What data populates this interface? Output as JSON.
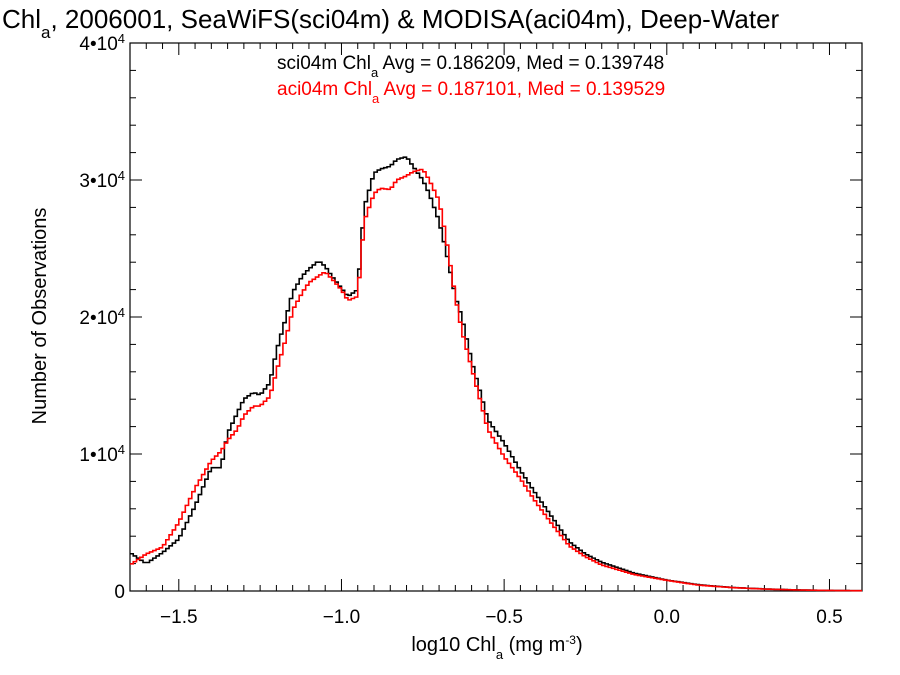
{
  "chart_data": {
    "type": "line",
    "title_parts": [
      "Chl",
      "a",
      ", 2006001, SeaWiFS(sci04m) & MODISA(aci04m), Deep-Water"
    ],
    "xlabel_parts": [
      "log10 Chl",
      "a",
      " (mg m",
      "-3",
      ")"
    ],
    "ylabel": "Number of Observations",
    "xlim": [
      -1.65,
      0.6
    ],
    "ylim": [
      0,
      40000
    ],
    "x_ticks": [
      {
        "value": -1.5,
        "label": "−1.5"
      },
      {
        "value": -1.0,
        "label": "−1.0"
      },
      {
        "value": -0.5,
        "label": "−0.5"
      },
      {
        "value": 0.0,
        "label": "0.0"
      },
      {
        "value": 0.5,
        "label": "0.5"
      }
    ],
    "y_ticks": [
      {
        "value": 0,
        "base": "0",
        "exp": ""
      },
      {
        "value": 10000,
        "base": "1•10",
        "exp": "4"
      },
      {
        "value": 20000,
        "base": "2•10",
        "exp": "4"
      },
      {
        "value": 30000,
        "base": "3•10",
        "exp": "4"
      },
      {
        "value": 40000,
        "base": "4•10",
        "exp": "4"
      }
    ],
    "legend": [
      {
        "prefix": "sci04m Chl",
        "sub": "a",
        "suffix": " Avg = 0.186209, Med = 0.139748",
        "color": "#000000"
      },
      {
        "prefix": "aci04m Chl",
        "sub": "a",
        "suffix": " Avg = 0.187101, Med = 0.139529",
        "color": "#ff0000"
      }
    ],
    "series": [
      {
        "color": "#000000",
        "x": [
          -1.65,
          -1.6,
          -1.55,
          -1.5,
          -1.45,
          -1.4,
          -1.37,
          -1.35,
          -1.32,
          -1.3,
          -1.27,
          -1.25,
          -1.22,
          -1.2,
          -1.17,
          -1.15,
          -1.12,
          -1.1,
          -1.07,
          -1.05,
          -1.03,
          -1.0,
          -0.98,
          -0.95,
          -0.93,
          -0.9,
          -0.88,
          -0.85,
          -0.83,
          -0.8,
          -0.78,
          -0.75,
          -0.73,
          -0.7,
          -0.68,
          -0.65,
          -0.63,
          -0.6,
          -0.55,
          -0.5,
          -0.45,
          -0.4,
          -0.35,
          -0.3,
          -0.25,
          -0.2,
          -0.1,
          0.0,
          0.1,
          0.2,
          0.3,
          0.4,
          0.5,
          0.6
        ],
        "y": [
          2800,
          2000,
          2800,
          3800,
          6200,
          9000,
          9000,
          11500,
          13000,
          14000,
          14500,
          14300,
          15200,
          17500,
          20000,
          21800,
          23000,
          23500,
          24100,
          23700,
          23000,
          22100,
          21500,
          22000,
          28000,
          30500,
          30800,
          31000,
          31500,
          31700,
          31000,
          30000,
          29000,
          27000,
          25000,
          21500,
          20000,
          16800,
          12500,
          10800,
          8800,
          7000,
          5300,
          3600,
          2700,
          2100,
          1300,
          800,
          450,
          260,
          150,
          80,
          40,
          20
        ]
      },
      {
        "color": "#ff0000",
        "x": [
          -1.65,
          -1.6,
          -1.55,
          -1.5,
          -1.45,
          -1.4,
          -1.37,
          -1.35,
          -1.32,
          -1.3,
          -1.27,
          -1.25,
          -1.22,
          -1.2,
          -1.17,
          -1.15,
          -1.12,
          -1.1,
          -1.07,
          -1.05,
          -1.03,
          -1.0,
          -0.98,
          -0.95,
          -0.93,
          -0.9,
          -0.88,
          -0.85,
          -0.83,
          -0.8,
          -0.78,
          -0.75,
          -0.73,
          -0.7,
          -0.68,
          -0.65,
          -0.63,
          -0.6,
          -0.55,
          -0.5,
          -0.45,
          -0.4,
          -0.35,
          -0.3,
          -0.25,
          -0.2,
          -0.1,
          0.0,
          0.1,
          0.2,
          0.3,
          0.4,
          0.5,
          0.6
        ],
        "y": [
          1900,
          2700,
          3200,
          5000,
          7500,
          9500,
          10200,
          11000,
          11800,
          12800,
          13500,
          13500,
          14200,
          16000,
          18500,
          20500,
          21800,
          22500,
          23000,
          23300,
          22800,
          22000,
          21200,
          21500,
          27000,
          29000,
          29400,
          29300,
          30000,
          30300,
          30600,
          30800,
          30000,
          28500,
          26000,
          21500,
          19000,
          16300,
          11800,
          9800,
          8200,
          6400,
          4800,
          3300,
          2500,
          1900,
          1200,
          780,
          420,
          250,
          140,
          75,
          40,
          20
        ]
      }
    ]
  }
}
